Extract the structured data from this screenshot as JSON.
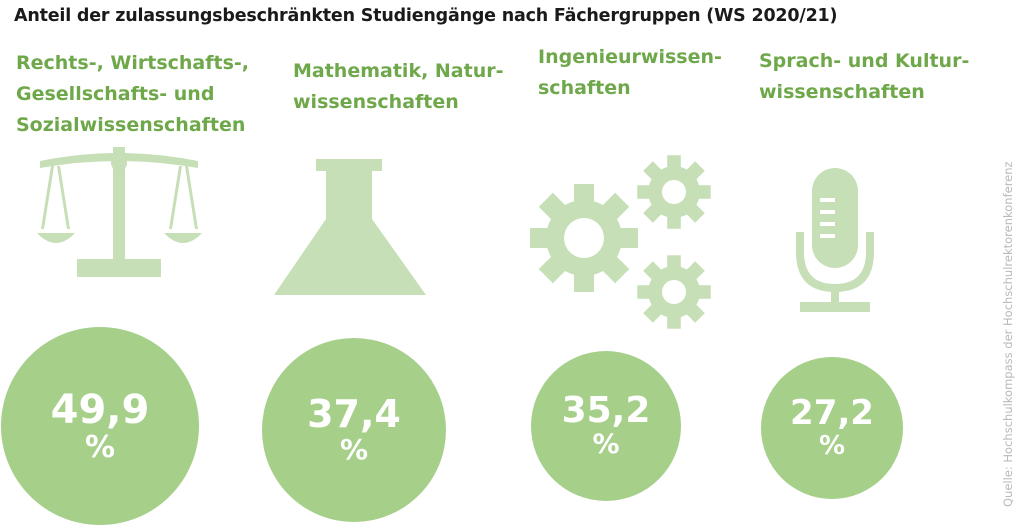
{
  "colors": {
    "label_green": "#6fa84a",
    "icon_green": "#c6dfb7",
    "bubble_green": "#a6cf8a",
    "text_dark": "#1a1a1a",
    "source_gray": "#b9b9b9"
  },
  "chart_data": {
    "type": "bubble",
    "title": "Anteil der zulassungsbeschränkten Studiengänge nach Fächergruppen (WS 2020/21)",
    "unit": "%",
    "categories": [
      {
        "lines": [
          "Rechts-, Wirtschafts-,",
          "Gesellschafts- und",
          "Sozialwissenschaften"
        ],
        "icon": "scales-icon",
        "value": 49.9,
        "value_label": "49,9"
      },
      {
        "lines": [
          "Mathematik, Natur-",
          "wissenschaften"
        ],
        "icon": "flask-icon",
        "value": 37.4,
        "value_label": "37,4"
      },
      {
        "lines": [
          "Ingenieurwissen-",
          "schaften"
        ],
        "icon": "gears-icon",
        "value": 35.2,
        "value_label": "35,2"
      },
      {
        "lines": [
          "Sprach- und Kultur-",
          "wissenschaften"
        ],
        "icon": "microphone-icon",
        "value": 27.2,
        "value_label": "27,2"
      }
    ],
    "source": "Quelle: Hochschulkompass der Hochschulrektorenkonferenz"
  }
}
